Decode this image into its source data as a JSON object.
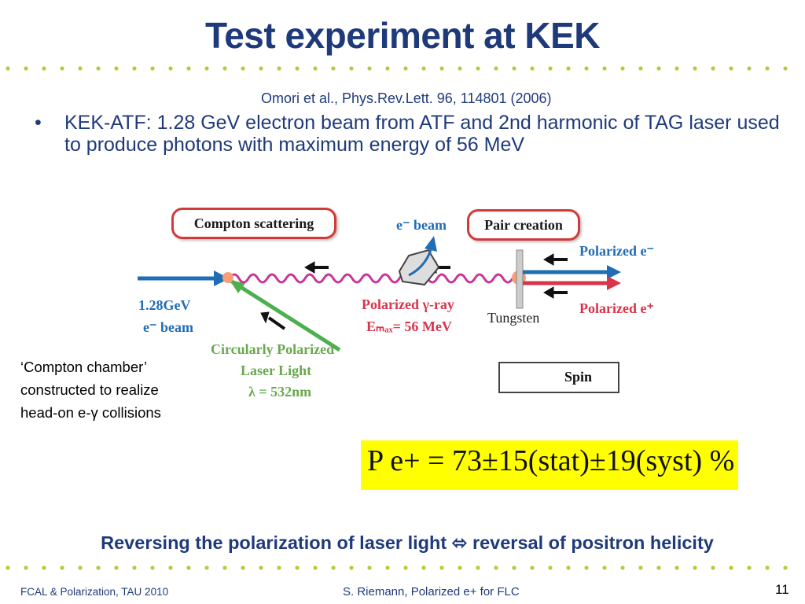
{
  "slide": {
    "title": "Test experiment at KEK",
    "reference": "Omori et al., Phys.Rev.Lett. 96, 114801 (2006)",
    "bullet_marker": "•",
    "bullet": "KEK-ATF: 1.28 GeV electron beam from ATF and 2nd harmonic of TAG laser  used to produce photons with maximum energy of 56 MeV",
    "side_note": [
      "‘Compton chamber’",
      "constructed to realize",
      "head-on  e-γ collisions"
    ],
    "conclusion": "Reversing the polarization of laser light ⬄ reversal of positron helicity"
  },
  "diagram": {
    "compton_box": "Compton scattering",
    "pair_box": "Pair creation",
    "ebeam_top": "e⁻ beam",
    "polarized_e_minus": "Polarized e⁻",
    "polarized_e_plus": "Polarized e⁺",
    "beam_energy": "1.28GeV",
    "beam_label": "e⁻ beam",
    "gamma_ray": "Polarized γ-ray",
    "emax": "Eₘₐₓ= 56 MeV",
    "tungsten": "Tungsten",
    "laser_line1": "Circularly Polarized",
    "laser_line2": "Laser Light",
    "laser_line3": "λ = 532nm",
    "spin": "Spin",
    "colors": {
      "electron": "#1f6db5",
      "positron": "#d8344a",
      "laser": "#4caf50",
      "gamma": "#c8359a"
    }
  },
  "formula": {
    "text": "P e+ = 73±15(stat)±19(syst) %"
  },
  "footer": {
    "left": "FCAL & Polarization, TAU 2010",
    "center": "S. Riemann, Polarized e+ for FLC",
    "page": "11"
  }
}
